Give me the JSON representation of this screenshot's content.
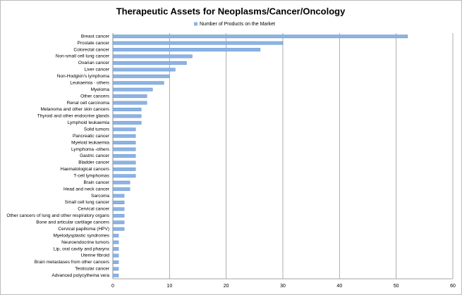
{
  "chart_data": {
    "type": "bar",
    "orientation": "horizontal",
    "title": "Therapeutic Assets for Neoplasms/Cancer/Oncology",
    "categories": [
      "Breast cancer",
      "Prostate cancer",
      "Colorectal cancer",
      "Non-small cell lung cancer",
      "Ovarian cancer",
      "Liver cancer",
      "Non-Hodgkin's lymphoma",
      "Leukaemia - others",
      "Myeloma",
      "Other cancers",
      "Renal cell carcinoma",
      "Melanoma and other skin cancers",
      "Thyroid and other endocrine glands",
      "Lymphoid leukaemia",
      "Solid tumors",
      "Pancreatic cancer",
      "Myeloid leukaemia",
      "Lymphoma -others",
      "Gastric cancer",
      "Bladder cancer",
      "Haematological cancers",
      "T-cell lymphomas",
      "Brain cancer",
      "Head and neck cancer",
      "Sarcoma",
      "Small cell lung cancer",
      "Cervical cancer",
      "Other cancers of lung and other respiratory organs",
      "Bone and articular cartilage cancers",
      "Cervical papilloma (HPV)",
      "Myelodysplastic syndromes",
      "Neuroendocrine tumors",
      "Lip, oral cavity and pharynx",
      "Uterine fibroid",
      "Brain metastases from other cancers",
      "Testicular cancer",
      "Advanced polycythema vera"
    ],
    "series": [
      {
        "name": "Number of Products on the Market",
        "color": "#8db3e2",
        "values": [
          52,
          30,
          26,
          14,
          13,
          11,
          10,
          9,
          7,
          6,
          6,
          5,
          5,
          5,
          4,
          4,
          4,
          4,
          4,
          4,
          4,
          4,
          3,
          3,
          2,
          2,
          2,
          2,
          2,
          2,
          1,
          1,
          1,
          1,
          1,
          1,
          1
        ]
      }
    ],
    "xlim": [
      0,
      60
    ],
    "xticks": [
      0,
      10,
      20,
      30,
      40,
      50,
      60
    ],
    "grid": true,
    "legend": "top"
  }
}
